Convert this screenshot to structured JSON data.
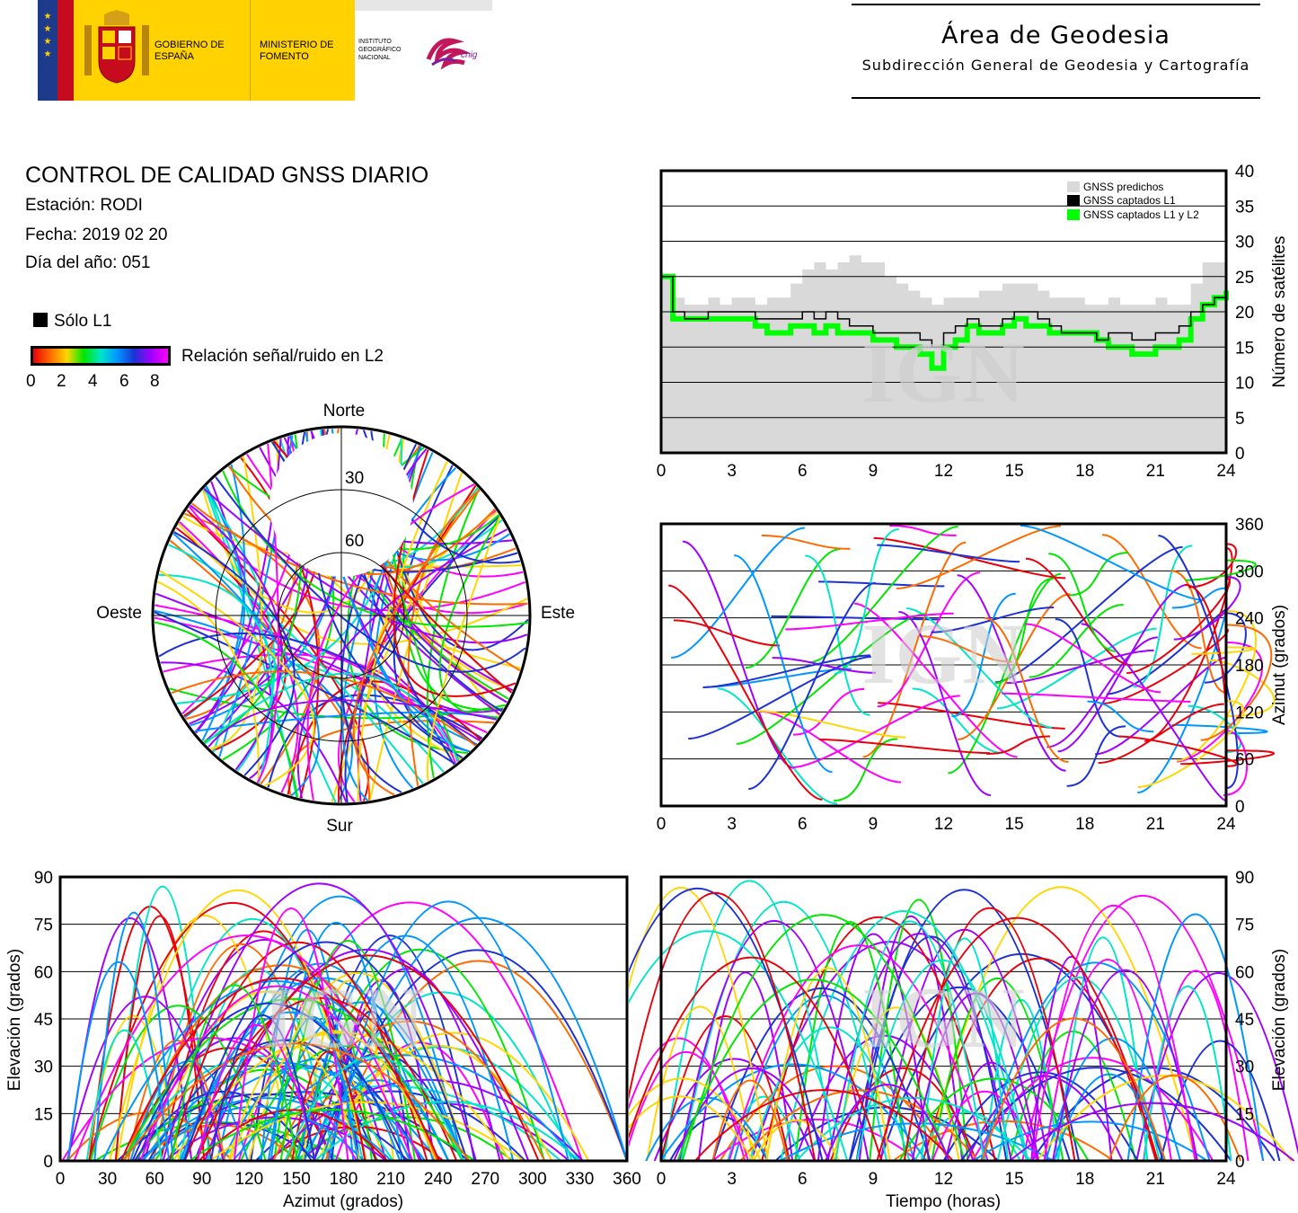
{
  "header": {
    "logo_gobierno": "GOBIERNO DE ESPAÑA",
    "logo_ministerio": "MINISTERIO DE FOMENTO",
    "logo_ign": "INSTITUTO GEOGRÁFICO NACIONAL",
    "logo_cnig": "cnig",
    "area_title": "Área de Geodesia",
    "area_subtitle": "Subdirección General de Geodesia y Cartografía"
  },
  "report": {
    "title": "CONTROL DE CALIDAD GNSS DIARIO",
    "station": "Estación: RODI",
    "date": "Fecha: 2019 02 20",
    "doy": "Día del año: 051",
    "legend_l1": "Sólo L1",
    "legend_snr": "Relación señal/ruido en L2",
    "snr_ticks": [
      "0",
      "2",
      "4",
      "6",
      "8"
    ]
  },
  "colors": {
    "snr_gradient": [
      "#e8000a",
      "#ff6a00",
      "#ffd700",
      "#00e600",
      "#00e6c8",
      "#0096ff",
      "#1e32d2",
      "#a000ff",
      "#ff00ff"
    ],
    "predicted": "#d9d9d9",
    "l1": "#000000",
    "l1l2": "#00ff00",
    "watermark": "#cfcfcf"
  },
  "watermark": "IGN",
  "chart_data": [
    {
      "id": "satellites",
      "type": "area",
      "ylabel": "Número de satélites",
      "xlim": [
        0,
        24
      ],
      "ylim": [
        0,
        40
      ],
      "xticks": [
        "0",
        "3",
        "6",
        "9",
        "12",
        "15",
        "18",
        "21",
        "24"
      ],
      "yticks": [
        "0",
        "5",
        "10",
        "15",
        "20",
        "25",
        "30",
        "35",
        "40"
      ],
      "legend": [
        "GNSS predichos",
        "GNSS captados L1",
        "GNSS captados L1 y L2"
      ],
      "legend_position": "top-right",
      "grid": true,
      "x": [
        0,
        0.5,
        1,
        1.5,
        2,
        2.5,
        3,
        3.5,
        4,
        4.5,
        5,
        5.5,
        6,
        6.5,
        7,
        7.5,
        8,
        8.5,
        9,
        9.5,
        10,
        10.5,
        11,
        11.5,
        12,
        12.5,
        13,
        13.5,
        14,
        14.5,
        15,
        15.5,
        16,
        16.5,
        17,
        17.5,
        18,
        18.5,
        19,
        19.5,
        20,
        20.5,
        21,
        21.5,
        22,
        22.5,
        23,
        23.5,
        24
      ],
      "series": [
        {
          "name": "GNSS predichos",
          "values": [
            25,
            22,
            21,
            21,
            22,
            21,
            22,
            22,
            21,
            22,
            22,
            24,
            26,
            27,
            26,
            27,
            28,
            27,
            27,
            25,
            24,
            23,
            22,
            21,
            22,
            22,
            22,
            23,
            23,
            24,
            24,
            24,
            23,
            22,
            22,
            22,
            21,
            21,
            22,
            21,
            21,
            21,
            22,
            21,
            21,
            24,
            27,
            27,
            25
          ]
        },
        {
          "name": "GNSS captados L1",
          "values": [
            25,
            20,
            19,
            19,
            20,
            20,
            20,
            20,
            19,
            19,
            19,
            19,
            20,
            19,
            20,
            19,
            18,
            18,
            17,
            17,
            17,
            17,
            16,
            15,
            17,
            18,
            19,
            18,
            18,
            19,
            20,
            20,
            19,
            18,
            17,
            17,
            17,
            16,
            17,
            17,
            16,
            16,
            17,
            17,
            18,
            20,
            21,
            22,
            24
          ]
        },
        {
          "name": "GNSS captados L1 y L2",
          "values": [
            25,
            19,
            19,
            19,
            19,
            19,
            19,
            19,
            18,
            17,
            17,
            18,
            18,
            17,
            18,
            17,
            17,
            17,
            16,
            16,
            15,
            15,
            14,
            12,
            15,
            16,
            18,
            17,
            17,
            18,
            19,
            18,
            18,
            17,
            17,
            17,
            17,
            16,
            15,
            15,
            14,
            14,
            15,
            15,
            16,
            19,
            21,
            22,
            23
          ]
        }
      ]
    },
    {
      "id": "skyplot",
      "type": "scatter",
      "labels": {
        "north": "Norte",
        "south": "Sur",
        "east": "Este",
        "west": "Oeste"
      },
      "rings": [
        "30",
        "60"
      ]
    },
    {
      "id": "azimuth_time",
      "type": "scatter",
      "ylabel": "Azimut (grados)",
      "xlim": [
        0,
        24
      ],
      "ylim": [
        0,
        360
      ],
      "xticks": [
        "0",
        "3",
        "6",
        "9",
        "12",
        "15",
        "18",
        "21",
        "24"
      ],
      "yticks": [
        "0",
        "60",
        "120",
        "180",
        "240",
        "300",
        "360"
      ],
      "grid": true
    },
    {
      "id": "elev_azimuth",
      "type": "scatter",
      "xlabel": "Azimut (grados)",
      "ylabel": "Elevación (grados)",
      "xlim": [
        0,
        360
      ],
      "ylim": [
        0,
        90
      ],
      "xticks": [
        "0",
        "30",
        "60",
        "90",
        "120",
        "150",
        "180",
        "210",
        "240",
        "270",
        "300",
        "330",
        "360"
      ],
      "yticks": [
        "0",
        "15",
        "30",
        "45",
        "60",
        "75",
        "90"
      ],
      "grid": true
    },
    {
      "id": "elev_time",
      "type": "scatter",
      "xlabel": "Tiempo (horas)",
      "ylabel": "Elevación (grados)",
      "xlim": [
        0,
        24
      ],
      "ylim": [
        0,
        90
      ],
      "xticks": [
        "0",
        "3",
        "6",
        "9",
        "12",
        "15",
        "18",
        "21",
        "24"
      ],
      "yticks": [
        "0",
        "15",
        "30",
        "45",
        "60",
        "75",
        "90"
      ],
      "grid": true
    }
  ]
}
